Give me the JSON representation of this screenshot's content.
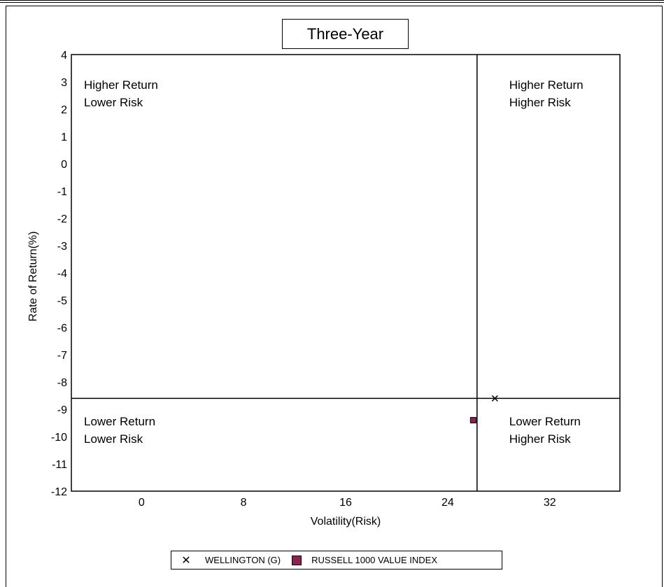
{
  "chart_data": {
    "type": "scatter",
    "title": "Three-Year",
    "xlabel": "Volatility(Risk)",
    "ylabel": "Rate of Return(%)",
    "xlim": [
      -5.5,
      37.5
    ],
    "ylim": [
      -12,
      4
    ],
    "x_ticks": [
      0,
      8,
      16,
      24,
      32
    ],
    "y_ticks": [
      4,
      3,
      2,
      1,
      0,
      -1,
      -2,
      -3,
      -4,
      -5,
      -6,
      -7,
      -8,
      -9,
      -10,
      -11,
      -12
    ],
    "grid": false,
    "legend_position": "bottom",
    "quadrant_lines": {
      "x": 26.3,
      "y": -8.6
    },
    "quadrant_labels": {
      "top_left": [
        "Higher Return",
        "Lower Risk"
      ],
      "top_right": [
        "Higher Return",
        "Higher Risk"
      ],
      "bottom_left": [
        "Lower Return",
        "Lower Risk"
      ],
      "bottom_right": [
        "Lower Return",
        "Higher Risk"
      ]
    },
    "series": [
      {
        "name": "WELLINGTON  (G)",
        "marker": "x",
        "color": "#000000",
        "x": [
          27.7
        ],
        "y": [
          -8.6
        ]
      },
      {
        "name": "RUSSELL 1000 VALUE INDEX",
        "marker": "square",
        "color": "#8b2252",
        "x": [
          26.0
        ],
        "y": [
          -9.4
        ]
      }
    ]
  }
}
